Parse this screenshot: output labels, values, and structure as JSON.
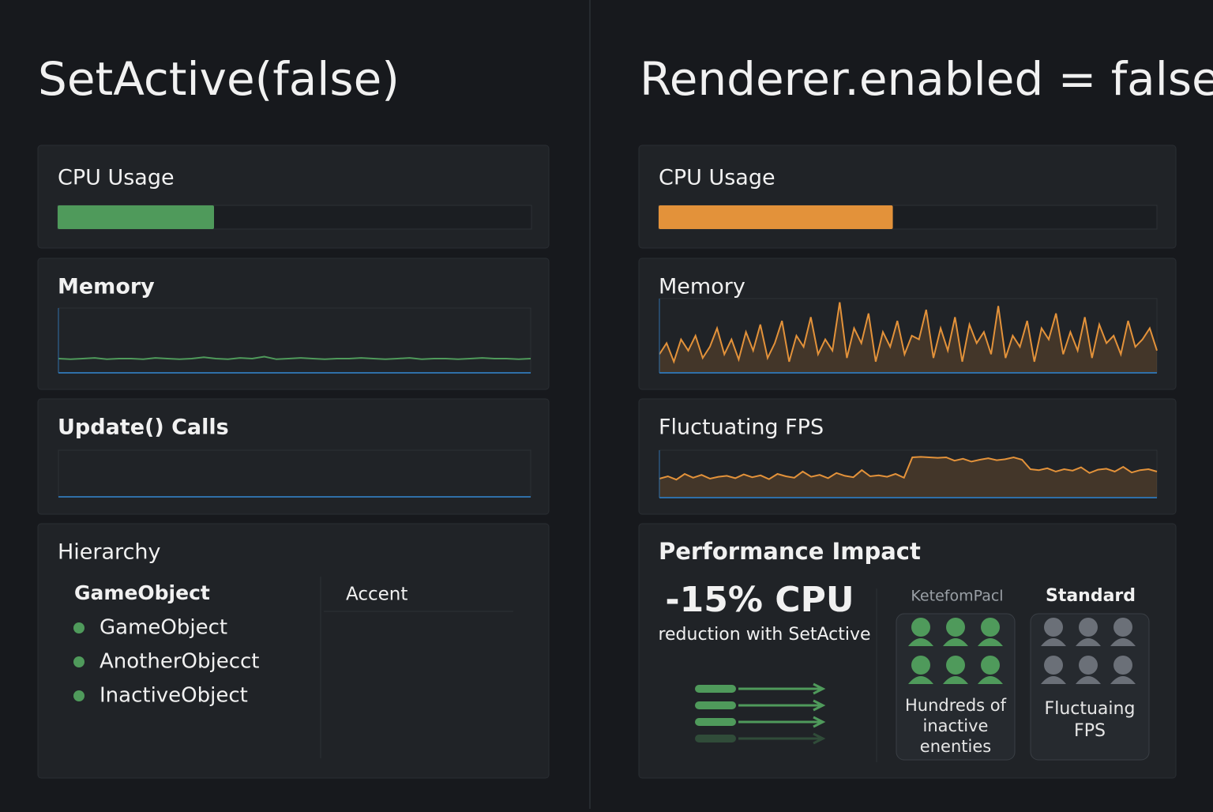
{
  "left": {
    "title": "SetActive(false)",
    "cpu": {
      "label": "CPU Usage",
      "value": 33,
      "xlim": [
        0,
        100
      ],
      "color": "#4f9a5b"
    },
    "memory": {
      "label": "Memory",
      "values": [
        22,
        21,
        22,
        23,
        21,
        22,
        22,
        21,
        23,
        22,
        21,
        22,
        24,
        22,
        21,
        23,
        22,
        25,
        21,
        22,
        23,
        22,
        21,
        22,
        22,
        23,
        22,
        21,
        22,
        23,
        21,
        22,
        22,
        21,
        22,
        23,
        22,
        22,
        21,
        22
      ],
      "ylim": [
        0,
        100
      ],
      "color": "#4f9a5b"
    },
    "update": {
      "label": "Update() Calls"
    },
    "hierarchy": {
      "label": "Hierarchy",
      "header": "GameObject",
      "items": [
        "GameObject",
        "AnotherObjecct",
        "InactiveObject"
      ],
      "side_header": "Accent"
    }
  },
  "right": {
    "title": "Renderer.enabled = false",
    "cpu": {
      "label": "CPU Usage",
      "value": 47,
      "xlim": [
        0,
        100
      ],
      "color": "#e3923a"
    },
    "memory": {
      "label": "Memory",
      "values": [
        25,
        40,
        15,
        45,
        30,
        50,
        20,
        35,
        60,
        25,
        45,
        18,
        55,
        30,
        65,
        20,
        40,
        70,
        15,
        50,
        35,
        75,
        25,
        45,
        30,
        95,
        20,
        60,
        40,
        80,
        15,
        55,
        35,
        70,
        25,
        50,
        45,
        85,
        20,
        60,
        30,
        75,
        15,
        65,
        40,
        55,
        25,
        90,
        20,
        50,
        35,
        70,
        15,
        60,
        45,
        80,
        25,
        55,
        30,
        75,
        20,
        65,
        40,
        50,
        25,
        70,
        35,
        45,
        60,
        30
      ],
      "ylim": [
        0,
        100
      ],
      "color": "#e3923a"
    },
    "fps": {
      "label": "Fluctuating FPS",
      "values": [
        40,
        45,
        38,
        50,
        42,
        48,
        40,
        44,
        46,
        41,
        49,
        43,
        47,
        39,
        50,
        45,
        42,
        55,
        44,
        48,
        41,
        52,
        46,
        43,
        58,
        45,
        47,
        44,
        50,
        42,
        85,
        86,
        85,
        84,
        85,
        78,
        82,
        76,
        80,
        83,
        79,
        81,
        85,
        80,
        60,
        58,
        62,
        55,
        60,
        57,
        64,
        52,
        59,
        61,
        55,
        65,
        53,
        58,
        60,
        55
      ],
      "ylim": [
        0,
        100
      ],
      "color": "#e3923a"
    },
    "impact": {
      "label": "Performance Impact",
      "headline": "-15% CPU",
      "subline": "reduction with SetActive",
      "left_card": {
        "header": "KetefomPacl",
        "caption": "Hundreds of inactive enenties"
      },
      "right_card": {
        "header": "Standard",
        "caption": "Fluctuaing FPS"
      }
    }
  }
}
